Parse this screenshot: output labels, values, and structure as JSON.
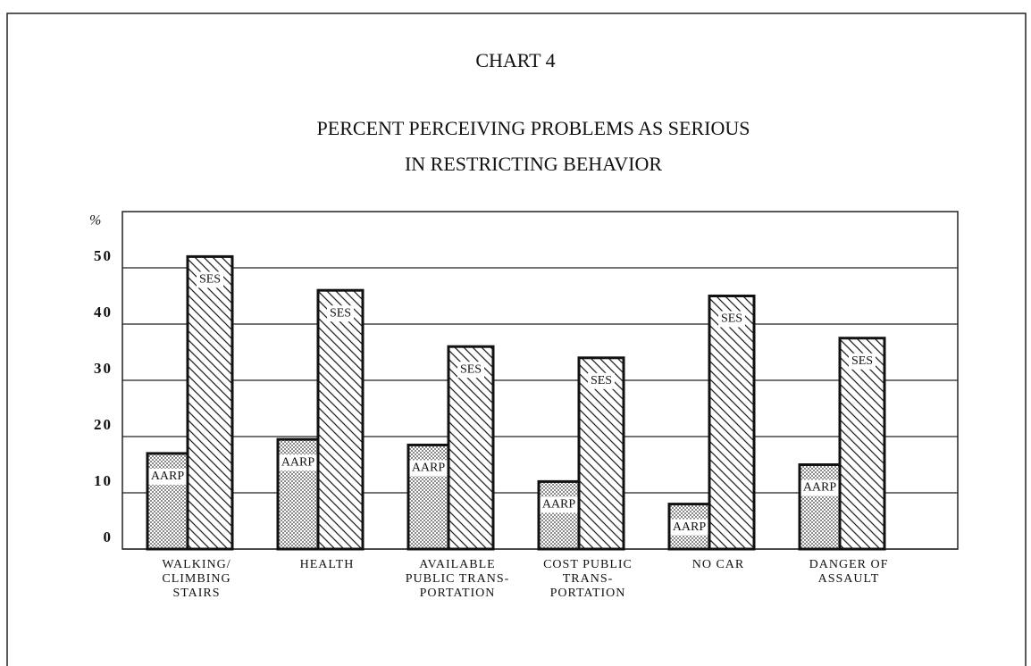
{
  "chart_data": {
    "type": "bar",
    "title": "CHART 4",
    "subtitle": [
      "PERCENT PERCEIVING PROBLEMS AS SERIOUS",
      "IN RESTRICTING BEHAVIOR"
    ],
    "y_label": "%",
    "categories": [
      [
        "WALKING/",
        "CLIMBING",
        "STAIRS"
      ],
      [
        "HEALTH"
      ],
      [
        "AVAILABLE",
        "PUBLIC TRANS-",
        "PORTATION"
      ],
      [
        "COST PUBLIC",
        "TRANS-",
        "PORTATION"
      ],
      [
        "NO CAR"
      ],
      [
        "DANGER OF",
        "ASSAULT"
      ]
    ],
    "series": [
      {
        "name": "AARP",
        "color": "#8a8a8a",
        "values": [
          17,
          19.5,
          18.5,
          12,
          8,
          15
        ]
      },
      {
        "name": "SES",
        "color": "#222222",
        "values": [
          52,
          46,
          36,
          34,
          45,
          37.5
        ]
      }
    ],
    "ylim": [
      0,
      60
    ],
    "yticks": [
      0,
      10,
      20,
      30,
      40,
      50
    ],
    "grid": true
  }
}
